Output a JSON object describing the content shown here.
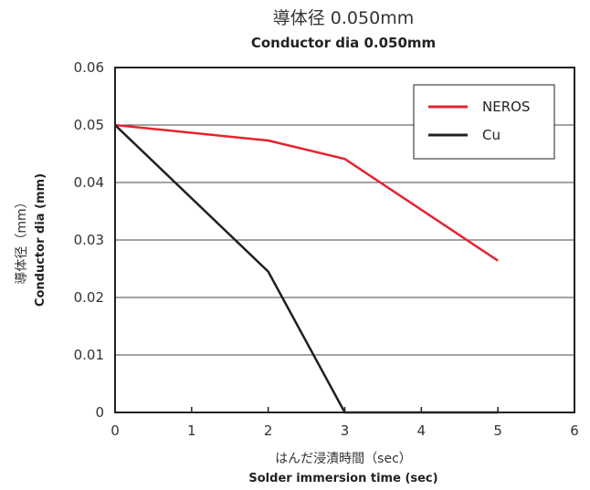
{
  "chart_data": {
    "type": "line",
    "title_jp": "導体径 0.050mm",
    "title_en": "Conductor dia 0.050mm",
    "xlabel_jp": "はんだ浸漬時間（sec）",
    "xlabel_en": "Solder immersion time (sec)",
    "ylabel_jp": "導体径（mm）",
    "ylabel_en": "Conductor dia (mm)",
    "xlim": [
      0,
      6
    ],
    "ylim": [
      0,
      0.06
    ],
    "x_ticks": [
      "0",
      "1",
      "2",
      "3",
      "4",
      "5",
      "6"
    ],
    "y_ticks": [
      "0",
      "0.01",
      "0.02",
      "0.03",
      "0.04",
      "0.05",
      "0.06"
    ],
    "grid": "horizontal",
    "legend_position": "top-right",
    "series": [
      {
        "name": "NEROS",
        "color": "#e8222e",
        "x": [
          0,
          2,
          3,
          5
        ],
        "y": [
          0.05,
          0.0473,
          0.0441,
          0.0264
        ]
      },
      {
        "name": "Cu",
        "color": "#231f20",
        "x": [
          0,
          2,
          3,
          5
        ],
        "y": [
          0.05,
          0.0245,
          0.0,
          0.0
        ]
      }
    ]
  }
}
